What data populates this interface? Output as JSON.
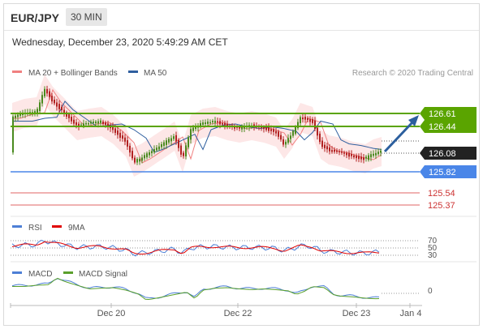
{
  "header": {
    "pair": "EUR/JPY",
    "timeframe": "30 MIN"
  },
  "datetime": "Wednesday, December 23, 2020 5:49:29 AM CET",
  "legend_main": [
    {
      "label": "MA 20 + Bollinger Bands",
      "color": "#f08080"
    },
    {
      "label": "MA 50",
      "color": "#2f5f9f"
    }
  ],
  "credit": "Research © 2020 Trading Central",
  "levels": [
    {
      "label": "126.61",
      "value": 126.61,
      "kind": "green"
    },
    {
      "label": "126.44",
      "value": 126.44,
      "kind": "green"
    },
    {
      "label": "126.08",
      "value": 126.08,
      "kind": "current"
    },
    {
      "label": "125.82",
      "value": 125.82,
      "kind": "blue"
    },
    {
      "label": "125.54",
      "value": 125.54,
      "kind": "red"
    },
    {
      "label": "125.37",
      "value": 125.37,
      "kind": "red"
    }
  ],
  "rsi_legend": [
    {
      "label": "RSI",
      "color": "#4d7fd6"
    },
    {
      "label": "9MA",
      "color": "#e00000"
    }
  ],
  "rsi_levels": [
    "70",
    "50",
    "30"
  ],
  "macd_legend": [
    {
      "label": "MACD",
      "color": "#4d7fd6"
    },
    {
      "label": "MACD Signal",
      "color": "#5aa02c"
    }
  ],
  "macd_level": "0",
  "x_axis": [
    "Dec 20",
    "Dec 22",
    "Dec 23",
    "Jan 4"
  ],
  "colors": {
    "up": "#4a8a1f",
    "down": "#b22222",
    "green_level": "#5aa400",
    "blue_level": "#4a86e8",
    "red_level": "#e06666",
    "current": "#222222",
    "arrow": "#2c5f9e",
    "band": "#fbd3d3"
  }
}
